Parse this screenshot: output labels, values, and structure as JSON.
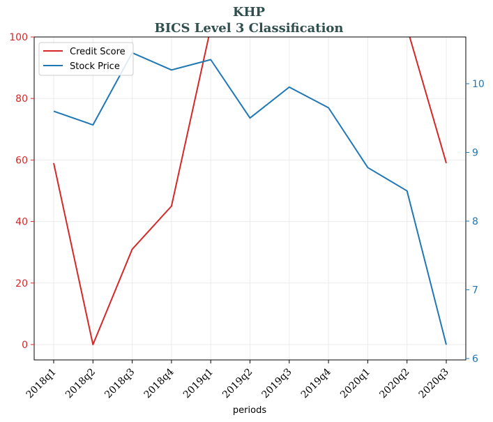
{
  "chart_data": {
    "type": "line",
    "title": "KHP",
    "subtitle": "BICS Level 3 Classification",
    "xlabel": "periods",
    "ylabel_left": "",
    "ylabel_right": "",
    "categories": [
      "2018q1",
      "2018q2",
      "2018q3",
      "2018q4",
      "2019q1",
      "2019q2",
      "2019q3",
      "2019q4",
      "2020q1",
      "2020q2",
      "2020q3"
    ],
    "series": [
      {
        "name": "Credit Score",
        "axis": "left",
        "color": "#d62728",
        "values": [
          59,
          0,
          31,
          45,
          103,
          null,
          null,
          null,
          null,
          103,
          59
        ]
      },
      {
        "name": "Stock Price",
        "axis": "right",
        "color": "#1f77b4",
        "values": [
          9.6,
          9.4,
          10.45,
          10.2,
          10.35,
          9.5,
          9.95,
          9.65,
          8.78,
          8.44,
          6.2
        ]
      }
    ],
    "ylim_left": [
      -5,
      100
    ],
    "ylim_right": [
      5.98,
      10.68
    ],
    "yticks_left": [
      0,
      20,
      40,
      60,
      80,
      100
    ],
    "yticks_right": [
      6,
      7,
      8,
      9,
      10
    ],
    "left_axis_color": "#d62728",
    "right_axis_color": "#1f77b4",
    "grid": true,
    "legend_position": "top-left"
  }
}
